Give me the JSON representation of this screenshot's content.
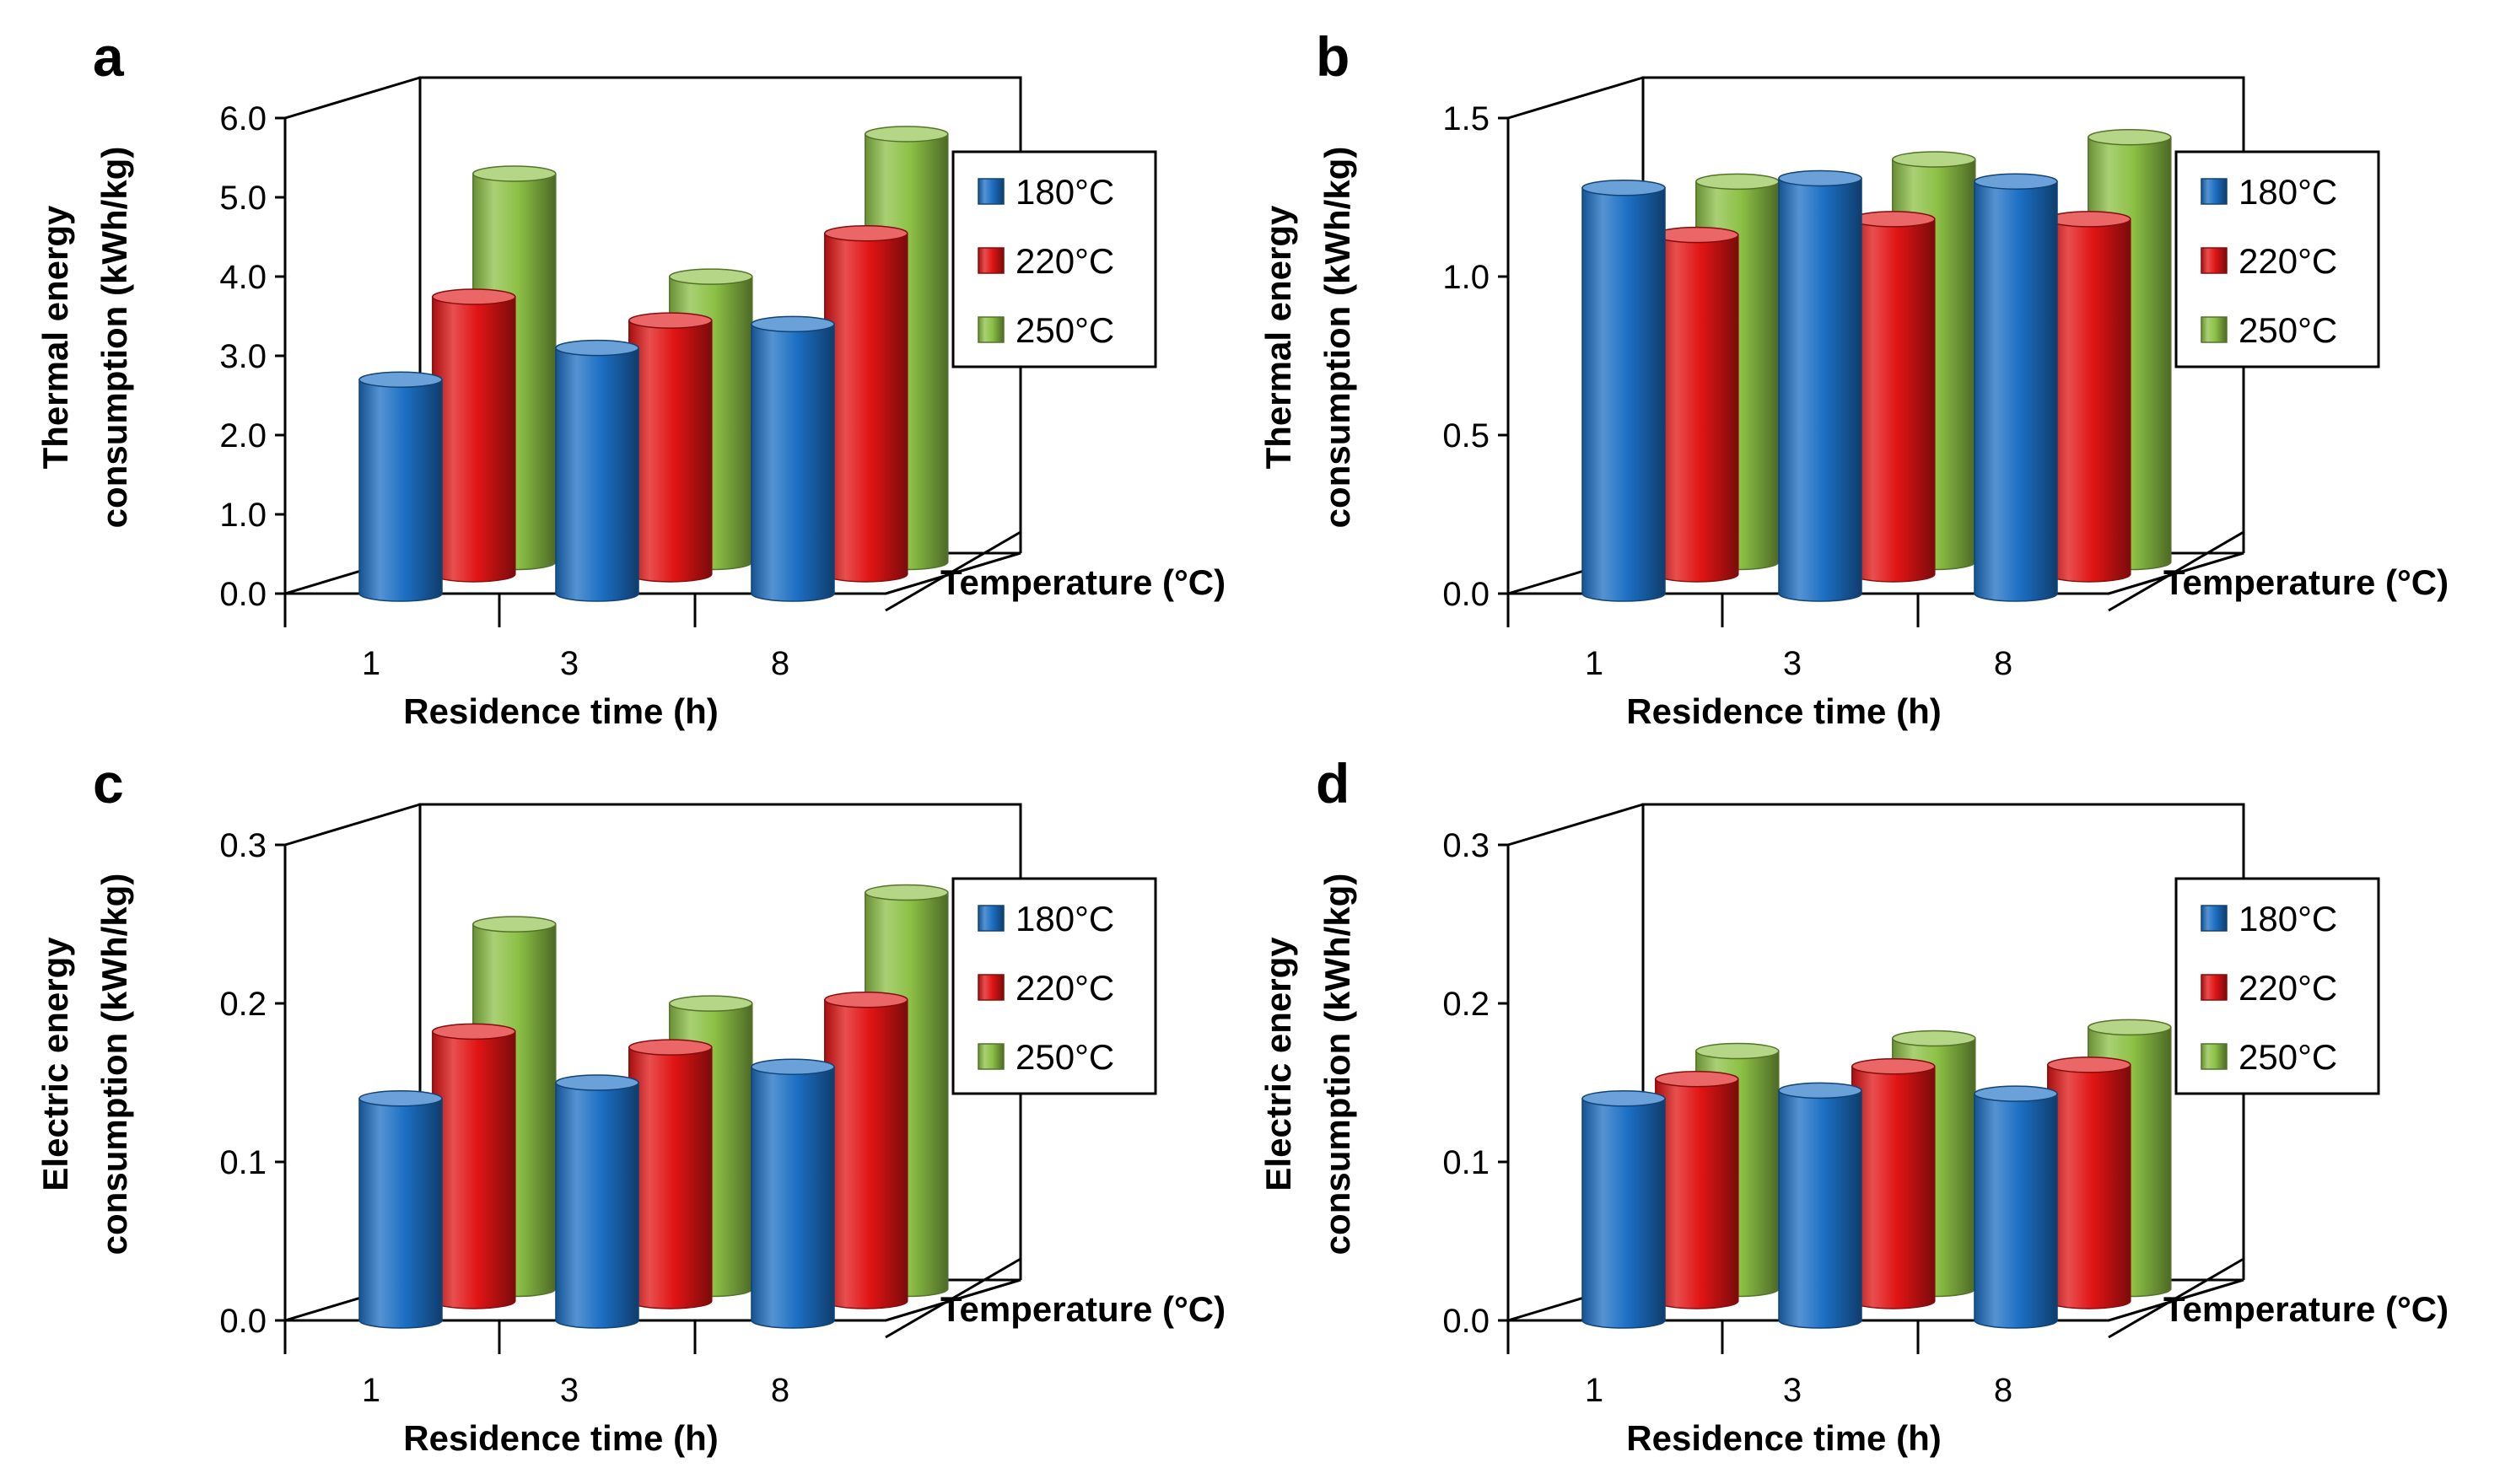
{
  "colors": {
    "s180": "#1c6fc4",
    "s220": "#e01414",
    "s250": "#8cc045",
    "axis": "#000000",
    "background": "#ffffff"
  },
  "chart_data": [
    {
      "panel_label": "a",
      "type": "bar",
      "style": "3d-cylinder",
      "ylabel_line1": "Thermal energy",
      "ylabel_line2": "consumption (kWh/kg)",
      "xlabel": "Residence time (h)",
      "zlabel": "Temperature (°C)",
      "ylim": [
        0,
        6
      ],
      "yticks": [
        "0.0",
        "1.0",
        "2.0",
        "3.0",
        "4.0",
        "5.0",
        "6.0"
      ],
      "categories": [
        "1",
        "3",
        "8"
      ],
      "series": [
        {
          "name": "180°C",
          "values": [
            2.7,
            3.1,
            3.4
          ]
        },
        {
          "name": "220°C",
          "values": [
            3.5,
            3.2,
            4.3
          ]
        },
        {
          "name": "250°C",
          "values": [
            4.9,
            3.6,
            5.4
          ]
        }
      ],
      "legend": [
        "180°C",
        "220°C",
        "250°C"
      ]
    },
    {
      "panel_label": "b",
      "type": "bar",
      "style": "3d-cylinder",
      "ylabel_line1": "Thermal energy",
      "ylabel_line2": "consumption (kWh/kg)",
      "xlabel": "Residence time (h)",
      "zlabel": "Temperature (°C)",
      "ylim": [
        0,
        1.5
      ],
      "yticks": [
        "0.0",
        "0.5",
        "1.0",
        "1.5"
      ],
      "categories": [
        "1",
        "3",
        "8"
      ],
      "series": [
        {
          "name": "180°C",
          "values": [
            1.28,
            1.31,
            1.3
          ]
        },
        {
          "name": "220°C",
          "values": [
            1.07,
            1.12,
            1.12
          ]
        },
        {
          "name": "250°C",
          "values": [
            1.2,
            1.27,
            1.34
          ]
        }
      ],
      "legend": [
        "180°C",
        "220°C",
        "250°C"
      ]
    },
    {
      "panel_label": "c",
      "type": "bar",
      "style": "3d-cylinder",
      "ylabel_line1": "Electric energy",
      "ylabel_line2": "consumption (kWh/kg)",
      "xlabel": "Residence time (h)",
      "zlabel": "Temperature (°C)",
      "ylim": [
        0,
        0.3
      ],
      "yticks": [
        "0.0",
        "0.1",
        "0.2",
        "0.3"
      ],
      "categories": [
        "1",
        "3",
        "8"
      ],
      "series": [
        {
          "name": "180°C",
          "values": [
            0.14,
            0.15,
            0.16
          ]
        },
        {
          "name": "220°C",
          "values": [
            0.17,
            0.16,
            0.19
          ]
        },
        {
          "name": "250°C",
          "values": [
            0.23,
            0.18,
            0.25
          ]
        }
      ],
      "legend": [
        "180°C",
        "220°C",
        "250°C"
      ]
    },
    {
      "panel_label": "d",
      "type": "bar",
      "style": "3d-cylinder",
      "ylabel_line1": "Electric energy",
      "ylabel_line2": "consumption (kWh/kg)",
      "xlabel": "Residence time (h)",
      "zlabel": "Temperature (°C)",
      "ylim": [
        0,
        0.3
      ],
      "yticks": [
        "0.0",
        "0.1",
        "0.2",
        "0.3"
      ],
      "categories": [
        "1",
        "3",
        "8"
      ],
      "series": [
        {
          "name": "180°C",
          "values": [
            0.14,
            0.145,
            0.143
          ]
        },
        {
          "name": "220°C",
          "values": [
            0.14,
            0.148,
            0.149
          ]
        },
        {
          "name": "250°C",
          "values": [
            0.15,
            0.158,
            0.165
          ]
        }
      ],
      "legend": [
        "180°C",
        "220°C",
        "250°C"
      ]
    }
  ]
}
